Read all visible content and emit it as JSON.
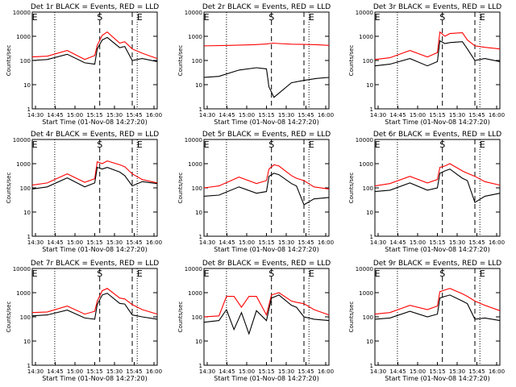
{
  "chart_data": [
    {
      "type": "line",
      "title": "Det 1r BLACK = Events, RED = LLD",
      "xlabel": "Start Time (01-Nov-08 14:27:20)",
      "ylabel": "Counts/sec",
      "yscale": "log",
      "ylim": [
        1,
        10000
      ],
      "xticks": [
        "14:30",
        "14:45",
        "15:00",
        "15:15",
        "15:30",
        "15:45",
        "16:00"
      ],
      "yticks": [
        "1",
        "10",
        "100",
        "1000",
        "10000"
      ],
      "markers": [
        "E",
        "S",
        "E"
      ],
      "series": [
        {
          "color": "#ff0000",
          "x": [
            0,
            0.12,
            0.28,
            0.42,
            0.5,
            0.52,
            0.56,
            0.6,
            0.7,
            0.74,
            0.8,
            0.88,
            1
          ],
          "y": [
            140,
            150,
            260,
            110,
            160,
            420,
            1100,
            1500,
            520,
            600,
            300,
            200,
            120
          ]
        },
        {
          "color": "#000000",
          "x": [
            0,
            0.12,
            0.28,
            0.42,
            0.5,
            0.52,
            0.56,
            0.6,
            0.7,
            0.74,
            0.8,
            0.88,
            1
          ],
          "y": [
            100,
            110,
            180,
            80,
            70,
            300,
            700,
            900,
            340,
            380,
            100,
            120,
            90
          ]
        }
      ]
    },
    {
      "type": "line",
      "title": "Det 2r BLACK = Events, RED = LLD",
      "xlabel": "Start Time (01-Nov-08 14:27:20)",
      "ylabel": "Counts/sec",
      "yscale": "log",
      "ylim": [
        1,
        10000
      ],
      "xticks": [
        "14:30",
        "14:45",
        "15:00",
        "15:15",
        "15:30",
        "15:45",
        "16:00"
      ],
      "yticks": [
        "1",
        "10",
        "100",
        "1000",
        "10000"
      ],
      "markers": [
        "E",
        "S",
        "E"
      ],
      "series": [
        {
          "color": "#ff0000",
          "x": [
            0,
            0.2,
            0.4,
            0.5,
            0.55,
            0.6,
            0.7,
            0.8,
            0.9,
            1
          ],
          "y": [
            400,
            420,
            450,
            480,
            520,
            500,
            470,
            460,
            450,
            420
          ]
        },
        {
          "color": "#000000",
          "x": [
            0,
            0.12,
            0.28,
            0.42,
            0.5,
            0.52,
            0.56,
            0.7,
            0.8,
            0.9,
            1
          ],
          "y": [
            20,
            22,
            40,
            50,
            45,
            8,
            3,
            12,
            15,
            18,
            20
          ]
        }
      ]
    },
    {
      "type": "line",
      "title": "Det 3r BLACK = Events, RED = LLD",
      "xlabel": "Start Time (01-Nov-08 14:27:20)",
      "ylabel": "Counts/sec",
      "yscale": "log",
      "ylim": [
        1,
        10000
      ],
      "xticks": [
        "14:30",
        "14:45",
        "15:00",
        "15:15",
        "15:30",
        "15:45",
        "16:00"
      ],
      "yticks": [
        "1",
        "10",
        "100",
        "1000",
        "10000"
      ],
      "markers": [
        "E",
        "S",
        "E"
      ],
      "series": [
        {
          "color": "#ff0000",
          "x": [
            0,
            0.12,
            0.28,
            0.42,
            0.5,
            0.52,
            0.56,
            0.6,
            0.7,
            0.74,
            0.8,
            0.88,
            1
          ],
          "y": [
            110,
            130,
            260,
            140,
            210,
            1500,
            1000,
            1300,
            1400,
            700,
            400,
            350,
            300
          ]
        },
        {
          "color": "#000000",
          "x": [
            0,
            0.12,
            0.28,
            0.42,
            0.5,
            0.52,
            0.56,
            0.6,
            0.7,
            0.74,
            0.8,
            0.88,
            1
          ],
          "y": [
            60,
            70,
            120,
            60,
            90,
            650,
            500,
            550,
            600,
            300,
            100,
            120,
            90
          ]
        }
      ]
    },
    {
      "type": "line",
      "title": "Det 4r BLACK = Events, RED = LLD",
      "xlabel": "Start Time (01-Nov-08 14:27:20)",
      "ylabel": "Counts/sec",
      "yscale": "log",
      "ylim": [
        1,
        10000
      ],
      "xticks": [
        "14:30",
        "14:45",
        "15:00",
        "15:15",
        "15:30",
        "15:45",
        "16:00"
      ],
      "yticks": [
        "1",
        "10",
        "100",
        "1000",
        "10000"
      ],
      "markers": [
        "E",
        "S",
        "E"
      ],
      "series": [
        {
          "color": "#ff0000",
          "x": [
            0,
            0.12,
            0.28,
            0.42,
            0.5,
            0.52,
            0.56,
            0.6,
            0.7,
            0.74,
            0.8,
            0.88,
            1
          ],
          "y": [
            130,
            160,
            380,
            170,
            240,
            1200,
            1000,
            1300,
            900,
            750,
            380,
            220,
            160
          ]
        },
        {
          "color": "#000000",
          "x": [
            0,
            0.12,
            0.28,
            0.42,
            0.5,
            0.52,
            0.56,
            0.6,
            0.7,
            0.74,
            0.8,
            0.88,
            1
          ],
          "y": [
            90,
            110,
            260,
            110,
            160,
            700,
            600,
            700,
            450,
            320,
            120,
            180,
            150
          ]
        }
      ]
    },
    {
      "type": "line",
      "title": "Det 5r BLACK = Events, RED = LLD",
      "xlabel": "Start Time (01-Nov-08 14:27:20)",
      "ylabel": "Counts/sec",
      "yscale": "log",
      "ylim": [
        1,
        10000
      ],
      "xticks": [
        "14:30",
        "14:45",
        "15:00",
        "15:15",
        "15:30",
        "15:45",
        "16:00"
      ],
      "yticks": [
        "1",
        "10",
        "100",
        "1000",
        "10000"
      ],
      "markers": [
        "E",
        "S",
        "E"
      ],
      "series": [
        {
          "color": "#ff0000",
          "x": [
            0,
            0.12,
            0.28,
            0.42,
            0.5,
            0.52,
            0.56,
            0.6,
            0.7,
            0.74,
            0.8,
            0.88,
            1
          ],
          "y": [
            100,
            120,
            280,
            150,
            200,
            600,
            900,
            800,
            320,
            250,
            200,
            110,
            90
          ]
        },
        {
          "color": "#000000",
          "x": [
            0,
            0.12,
            0.28,
            0.42,
            0.5,
            0.52,
            0.56,
            0.6,
            0.7,
            0.74,
            0.8,
            0.88,
            1
          ],
          "y": [
            45,
            50,
            110,
            60,
            70,
            300,
            400,
            350,
            150,
            120,
            20,
            35,
            40
          ]
        }
      ]
    },
    {
      "type": "line",
      "title": "Det 6r BLACK = Events, RED = LLD",
      "xlabel": "Start Time (01-Nov-08 14:27:20)",
      "ylabel": "Counts/sec",
      "yscale": "log",
      "ylim": [
        1,
        10000
      ],
      "xticks": [
        "14:30",
        "14:45",
        "15:00",
        "15:15",
        "15:30",
        "15:45",
        "16:00"
      ],
      "yticks": [
        "1",
        "10",
        "100",
        "1000",
        "10000"
      ],
      "markers": [
        "E",
        "S",
        "E"
      ],
      "series": [
        {
          "color": "#ff0000",
          "x": [
            0,
            0.12,
            0.28,
            0.42,
            0.5,
            0.52,
            0.56,
            0.6,
            0.7,
            0.74,
            0.8,
            0.88,
            1
          ],
          "y": [
            120,
            150,
            300,
            160,
            220,
            700,
            800,
            1000,
            500,
            400,
            300,
            180,
            130
          ]
        },
        {
          "color": "#000000",
          "x": [
            0,
            0.12,
            0.28,
            0.42,
            0.5,
            0.52,
            0.56,
            0.6,
            0.7,
            0.74,
            0.8,
            0.88,
            1
          ],
          "y": [
            70,
            80,
            160,
            80,
            100,
            400,
            500,
            600,
            250,
            200,
            25,
            45,
            60
          ]
        }
      ]
    },
    {
      "type": "line",
      "title": "Det 7r BLACK = Events, RED = LLD",
      "xlabel": "Start Time (01-Nov-08 14:27:20)",
      "ylabel": "Counts/sec",
      "yscale": "log",
      "ylim": [
        1,
        10000
      ],
      "xticks": [
        "14:30",
        "14:45",
        "15:00",
        "15:15",
        "15:30",
        "15:45",
        "16:00"
      ],
      "yticks": [
        "1",
        "10",
        "100",
        "1000",
        "10000"
      ],
      "markers": [
        "E",
        "S",
        "E"
      ],
      "series": [
        {
          "color": "#ff0000",
          "x": [
            0,
            0.12,
            0.28,
            0.42,
            0.5,
            0.52,
            0.56,
            0.6,
            0.7,
            0.74,
            0.8,
            0.88,
            1
          ],
          "y": [
            150,
            160,
            280,
            130,
            170,
            450,
            1200,
            1500,
            600,
            550,
            320,
            200,
            130
          ]
        },
        {
          "color": "#000000",
          "x": [
            0,
            0.12,
            0.28,
            0.42,
            0.5,
            0.52,
            0.56,
            0.6,
            0.7,
            0.74,
            0.8,
            0.88,
            1
          ],
          "y": [
            110,
            120,
            190,
            90,
            80,
            320,
            800,
            950,
            360,
            340,
            120,
            100,
            80
          ]
        }
      ]
    },
    {
      "type": "line",
      "title": "Det 8r BLACK = Events, RED = LLD",
      "xlabel": "Start Time (01-Nov-08 14:27:20)",
      "ylabel": "Counts/sec",
      "yscale": "log",
      "ylim": [
        1,
        10000
      ],
      "xticks": [
        "14:30",
        "14:45",
        "15:00",
        "15:15",
        "15:30",
        "15:45",
        "16:00"
      ],
      "yticks": [
        "1",
        "10",
        "100",
        "1000",
        "10000"
      ],
      "markers": [
        "E",
        "S",
        "E"
      ],
      "series": [
        {
          "color": "#ff0000",
          "x": [
            0,
            0.12,
            0.18,
            0.24,
            0.3,
            0.36,
            0.42,
            0.5,
            0.54,
            0.6,
            0.7,
            0.74,
            0.8,
            0.88,
            1
          ],
          "y": [
            100,
            110,
            700,
            700,
            250,
            700,
            700,
            120,
            800,
            1000,
            450,
            400,
            350,
            200,
            120
          ]
        },
        {
          "color": "#000000",
          "x": [
            0,
            0.12,
            0.18,
            0.24,
            0.3,
            0.36,
            0.42,
            0.5,
            0.54,
            0.6,
            0.7,
            0.74,
            0.8,
            0.88,
            1
          ],
          "y": [
            60,
            70,
            200,
            30,
            150,
            20,
            180,
            70,
            600,
            800,
            300,
            250,
            100,
            80,
            70
          ]
        }
      ]
    },
    {
      "type": "line",
      "title": "Det 9r BLACK = Events, RED = LLD",
      "xlabel": "Start Time (01-Nov-08 14:27:20)",
      "ylabel": "Counts/sec",
      "yscale": "log",
      "ylim": [
        1,
        10000
      ],
      "xticks": [
        "14:30",
        "14:45",
        "15:00",
        "15:15",
        "15:30",
        "15:45",
        "16:00"
      ],
      "yticks": [
        "1",
        "10",
        "100",
        "1000",
        "10000"
      ],
      "markers": [
        "E",
        "S",
        "E"
      ],
      "series": [
        {
          "color": "#ff0000",
          "x": [
            0,
            0.12,
            0.28,
            0.42,
            0.5,
            0.52,
            0.56,
            0.6,
            0.7,
            0.74,
            0.8,
            0.88,
            1
          ],
          "y": [
            130,
            150,
            300,
            200,
            280,
            1100,
            1300,
            1500,
            900,
            700,
            450,
            300,
            180
          ]
        },
        {
          "color": "#000000",
          "x": [
            0,
            0.12,
            0.28,
            0.42,
            0.5,
            0.52,
            0.56,
            0.6,
            0.7,
            0.74,
            0.8,
            0.88,
            1
          ],
          "y": [
            80,
            90,
            170,
            100,
            130,
            600,
            700,
            800,
            450,
            350,
            80,
            90,
            70
          ]
        }
      ]
    }
  ]
}
